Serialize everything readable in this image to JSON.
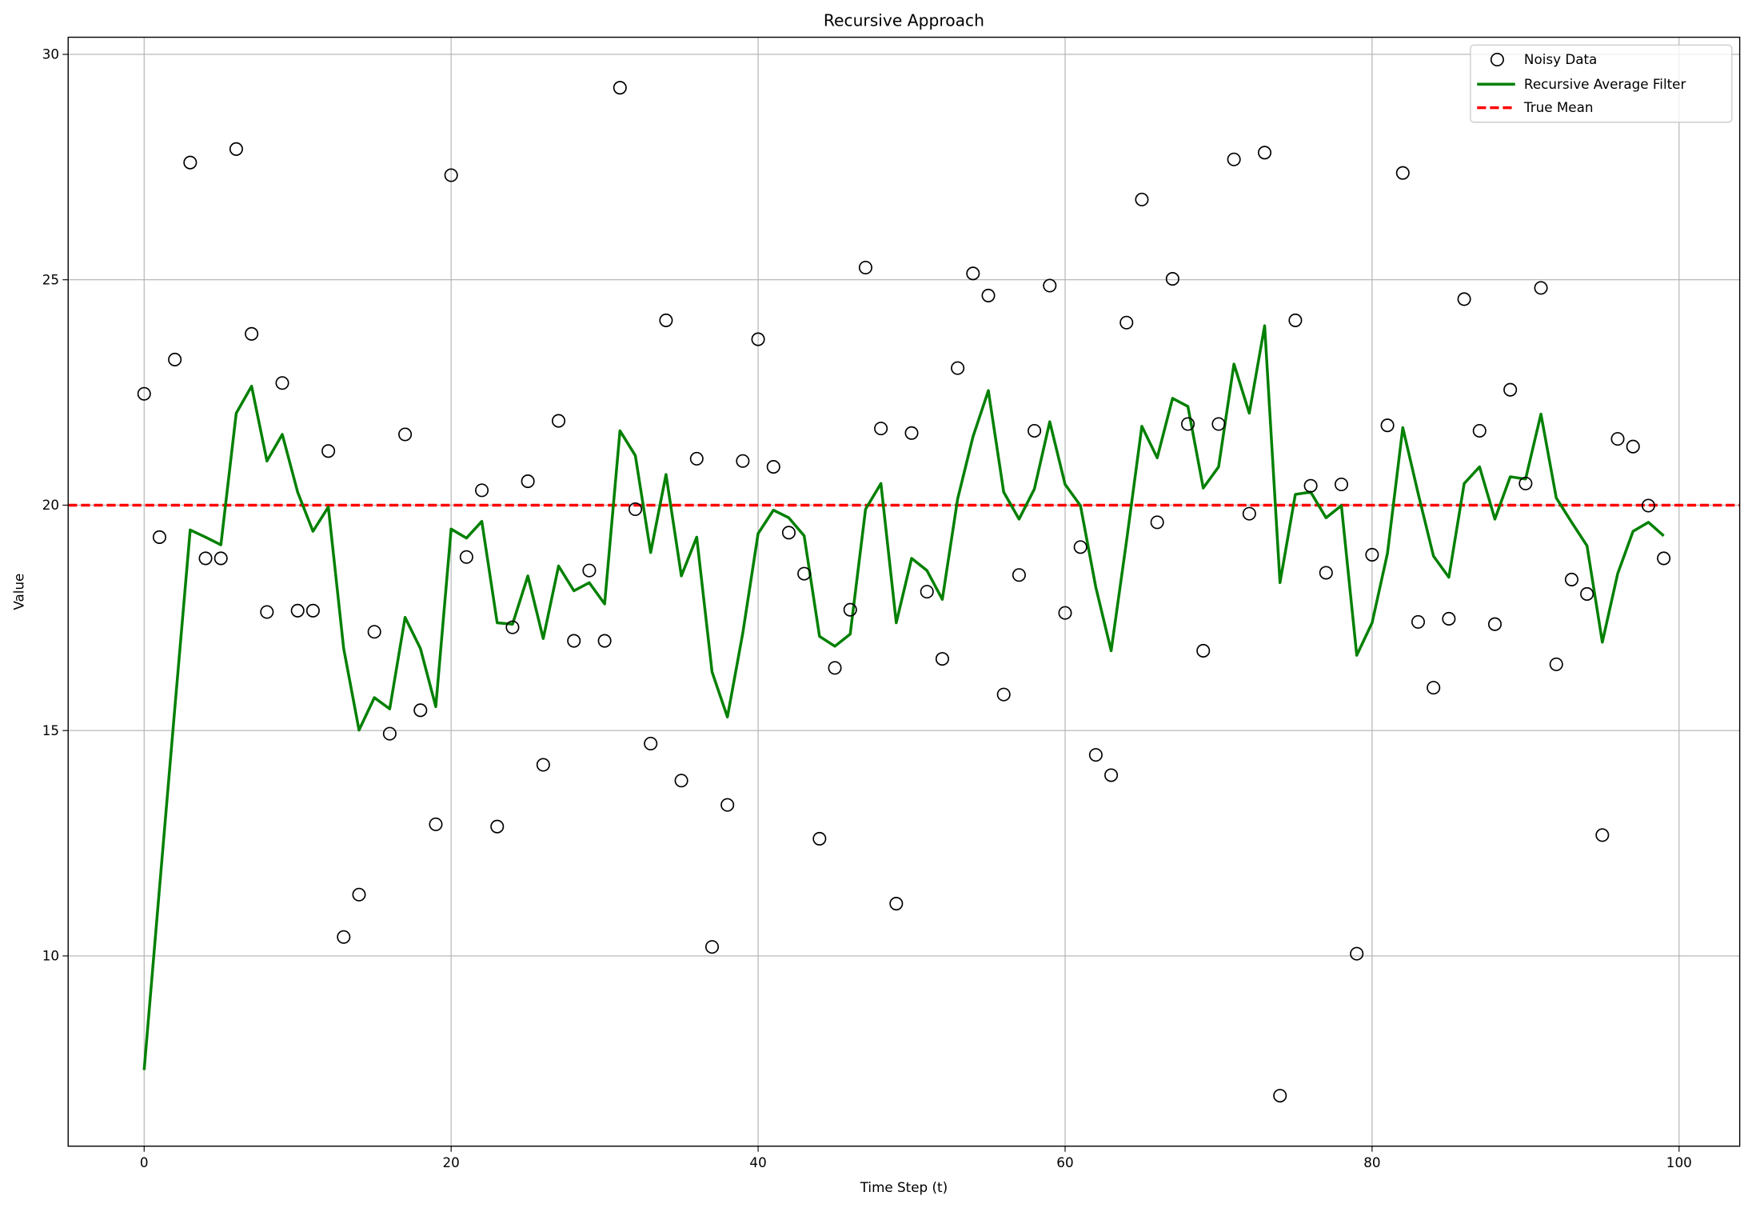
{
  "chart_data": {
    "type": "line",
    "title": "Recursive Approach",
    "xlabel": "Time Step (t)",
    "ylabel": "Value",
    "xlim": [
      -4.95,
      103.95
    ],
    "ylim": [
      5.78,
      30.38
    ],
    "xticks": [
      0,
      20,
      40,
      60,
      80,
      100
    ],
    "yticks": [
      10,
      15,
      20,
      25,
      30
    ],
    "xtick_labels": [
      "0",
      "20",
      "40",
      "60",
      "80",
      "100"
    ],
    "ytick_labels": [
      "10",
      "15",
      "20",
      "25",
      "30"
    ],
    "grid": true,
    "legend_placement": "top-right",
    "series": [
      {
        "name": "Noisy Data",
        "kind": "scatter",
        "marker": "open-circle",
        "color": "#000000",
        "y": [
          22.47,
          19.29,
          23.23,
          27.6,
          18.82,
          18.82,
          27.9,
          23.8,
          17.63,
          22.71,
          17.66,
          17.66,
          21.2,
          10.42,
          11.36,
          17.19,
          14.93,
          21.57,
          15.45,
          12.92,
          27.32,
          18.85,
          20.33,
          12.87,
          17.29,
          20.53,
          14.24,
          21.87,
          16.99,
          18.55,
          16.99,
          29.26,
          19.91,
          14.71,
          24.1,
          13.89,
          21.03,
          10.2,
          13.35,
          20.98,
          23.68,
          20.85,
          19.39,
          18.48,
          12.6,
          16.39,
          17.68,
          25.27,
          21.7,
          11.16,
          21.6,
          18.08,
          16.59,
          23.04,
          25.14,
          24.65,
          15.8,
          18.45,
          21.65,
          24.87,
          17.61,
          19.07,
          14.46,
          14.01,
          24.05,
          26.78,
          19.62,
          25.02,
          21.8,
          16.77,
          21.8,
          27.67,
          19.81,
          27.82,
          6.9,
          24.1,
          20.43,
          18.5,
          20.46,
          10.05,
          18.9,
          21.77,
          27.37,
          17.41,
          15.95,
          17.48,
          24.57,
          21.65,
          17.36,
          22.56,
          20.48,
          24.82,
          16.47,
          18.35,
          18.03,
          12.68,
          21.47,
          21.3,
          19.99,
          18.82
        ]
      },
      {
        "name": "Recursive Average Filter",
        "kind": "line",
        "color": "#008000",
        "y": [
          7.47,
          11.5,
          15.5,
          19.45,
          19.29,
          19.12,
          22.04,
          22.64,
          20.98,
          21.57,
          20.29,
          19.42,
          19.96,
          16.82,
          15.01,
          15.73,
          15.48,
          17.51,
          16.82,
          15.53,
          19.47,
          19.27,
          19.64,
          17.39,
          17.36,
          18.43,
          17.04,
          18.65,
          18.1,
          18.28,
          17.81,
          21.65,
          21.1,
          18.95,
          20.68,
          18.43,
          19.29,
          16.3,
          15.3,
          17.16,
          19.37,
          19.89,
          19.72,
          19.32,
          17.09,
          16.87,
          17.14,
          19.91,
          20.48,
          17.39,
          18.82,
          18.55,
          17.91,
          20.14,
          21.52,
          22.54,
          20.29,
          19.69,
          20.36,
          21.85,
          20.46,
          19.99,
          18.18,
          16.77,
          19.2,
          21.75,
          21.05,
          22.37,
          22.19,
          20.38,
          20.85,
          23.13,
          22.04,
          23.98,
          18.28,
          20.24,
          20.29,
          19.72,
          19.99,
          16.67,
          17.39,
          18.93,
          21.72,
          20.26,
          18.87,
          18.4,
          20.48,
          20.85,
          19.69,
          20.63,
          20.58,
          22.02,
          20.16,
          19.62,
          19.1,
          16.96,
          18.48,
          19.42,
          19.62,
          19.32
        ]
      },
      {
        "name": "True Mean",
        "kind": "hline",
        "color": "#ff0000",
        "dashed": true,
        "value": 20
      }
    ]
  }
}
